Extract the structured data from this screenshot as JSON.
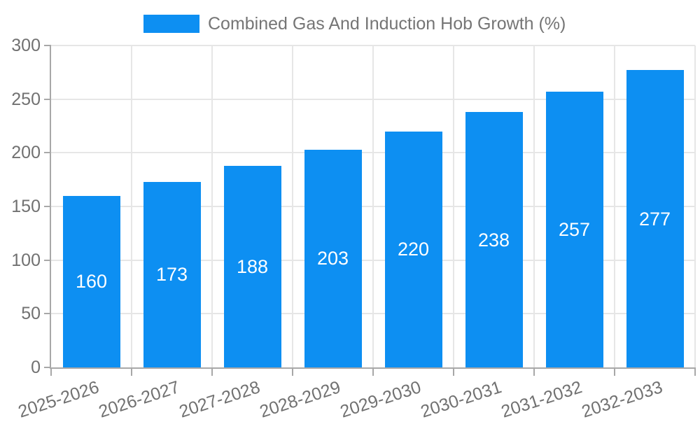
{
  "chart_data": {
    "type": "bar",
    "title": "",
    "legend_label": "Combined Gas And Induction Hob Growth (%)",
    "legend_position": "top",
    "categories": [
      "2025-2026",
      "2026-2027",
      "2027-2028",
      "2028-2029",
      "2029-2030",
      "2030-2031",
      "2031-2032",
      "2032-2033"
    ],
    "values": [
      160,
      173,
      188,
      203,
      220,
      238,
      257,
      277
    ],
    "value_labels": [
      "160",
      "173",
      "188",
      "203",
      "220",
      "238",
      "257",
      "277"
    ],
    "xlabel": "",
    "ylabel": "",
    "ylim": [
      0,
      300
    ],
    "yticks": [
      0,
      50,
      100,
      150,
      200,
      250,
      300
    ],
    "grid": true,
    "colors": {
      "bar_fill": "#0D8FF2",
      "value_label": "#FFFFFF",
      "gridline": "#E6E6E6",
      "axis_line": "#A8A8A8",
      "axis_label": "#717171",
      "legend_text": "#757575",
      "background": "#FFFFFF"
    }
  }
}
